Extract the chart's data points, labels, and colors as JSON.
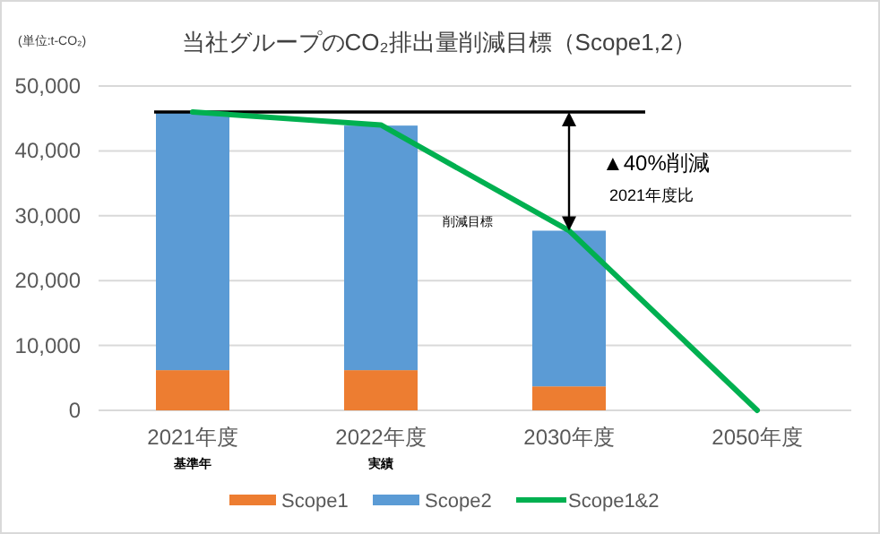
{
  "chart_data": {
    "type": "bar",
    "stacked": true,
    "title": "当社グループのCO₂排出量削減目標（Scope1,2）",
    "ylabel": "(単位:t-CO₂)",
    "categories": [
      "2021年度",
      "2022年度",
      "2030年度",
      "2050年度"
    ],
    "series": [
      {
        "name": "Scope1",
        "color": "#ed7d31",
        "values": [
          6200,
          6200,
          3700,
          null
        ]
      },
      {
        "name": "Scope2",
        "color": "#5b9bd5",
        "values": [
          39800,
          37700,
          24000,
          null
        ]
      },
      {
        "name": "Scope1&2",
        "type": "line",
        "color": "#00b050",
        "values": [
          46000,
          44000,
          27700,
          0
        ]
      }
    ],
    "ylim": [
      0,
      50000
    ],
    "yticks": [
      {
        "value": 0,
        "label": "0"
      },
      {
        "value": 10000,
        "label": "10,000"
      },
      {
        "value": 20000,
        "label": "20,000"
      },
      {
        "value": 30000,
        "label": "30,000"
      },
      {
        "value": 40000,
        "label": "40,000"
      },
      {
        "value": 50000,
        "label": "50,000"
      }
    ],
    "grid": "y",
    "legend": "bottom",
    "ref_lines": [
      {
        "axis": "y",
        "value": 46000,
        "color": "#000000"
      }
    ],
    "annotations": [
      "▲40%削減",
      "2021年度比",
      "削減目標",
      "基準年",
      "実績"
    ]
  }
}
